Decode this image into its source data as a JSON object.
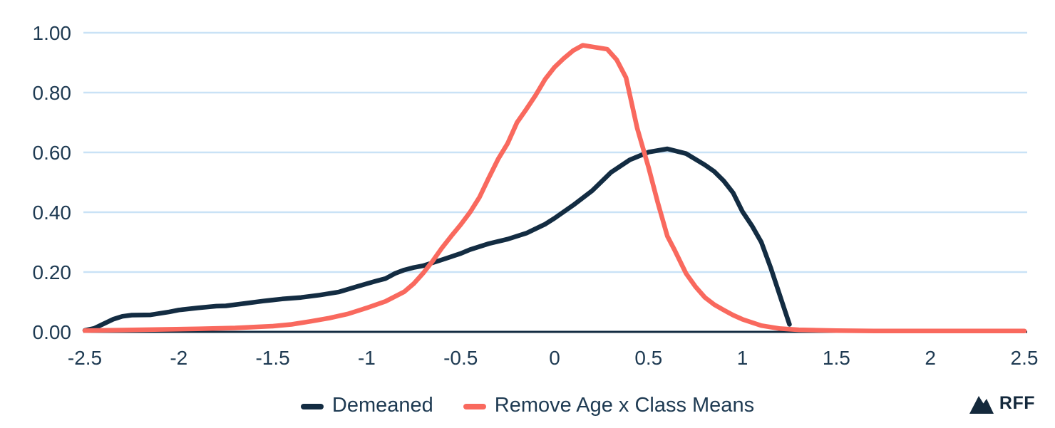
{
  "chart_data": {
    "type": "line",
    "title": "",
    "xlabel": "",
    "ylabel": "",
    "xlim": [
      -2.5,
      2.5
    ],
    "ylim": [
      0,
      1.0
    ],
    "grid": "horizontal",
    "legend_position": "bottom-center",
    "x_ticks": {
      "values": [
        -2.5,
        -2,
        -1.5,
        -1,
        -0.5,
        0,
        0.5,
        1,
        1.5,
        2,
        2.5
      ],
      "labels": [
        "-2.5",
        "-2",
        "-1.5",
        "-1",
        "-0.5",
        "0",
        "0.5",
        "1",
        "1.5",
        "2",
        "2.5"
      ]
    },
    "y_ticks": {
      "values": [
        0,
        0.2,
        0.4,
        0.6,
        0.8,
        1.0
      ],
      "labels": [
        "0.00",
        "0.20",
        "0.40",
        "0.60",
        "0.80",
        "1.00"
      ]
    },
    "colors": {
      "grid": "#c9e2f6",
      "axis": "#132c42",
      "tick_text": "#1e3a52"
    },
    "series": [
      {
        "name": "Demeaned",
        "color": "#132c42",
        "points": [
          [
            -2.5,
            0.005
          ],
          [
            -2.45,
            0.012
          ],
          [
            -2.4,
            0.027
          ],
          [
            -2.35,
            0.042
          ],
          [
            -2.3,
            0.052
          ],
          [
            -2.25,
            0.056
          ],
          [
            -2.15,
            0.057
          ],
          [
            -2.05,
            0.067
          ],
          [
            -2.0,
            0.073
          ],
          [
            -1.9,
            0.08
          ],
          [
            -1.8,
            0.086
          ],
          [
            -1.75,
            0.087
          ],
          [
            -1.65,
            0.095
          ],
          [
            -1.55,
            0.103
          ],
          [
            -1.45,
            0.11
          ],
          [
            -1.35,
            0.115
          ],
          [
            -1.25,
            0.123
          ],
          [
            -1.15,
            0.133
          ],
          [
            -1.05,
            0.152
          ],
          [
            -0.95,
            0.17
          ],
          [
            -0.9,
            0.178
          ],
          [
            -0.85,
            0.195
          ],
          [
            -0.8,
            0.207
          ],
          [
            -0.75,
            0.215
          ],
          [
            -0.7,
            0.221
          ],
          [
            -0.6,
            0.241
          ],
          [
            -0.5,
            0.262
          ],
          [
            -0.45,
            0.275
          ],
          [
            -0.35,
            0.295
          ],
          [
            -0.25,
            0.31
          ],
          [
            -0.15,
            0.33
          ],
          [
            -0.05,
            0.36
          ],
          [
            0.0,
            0.38
          ],
          [
            0.1,
            0.424
          ],
          [
            0.2,
            0.472
          ],
          [
            0.3,
            0.533
          ],
          [
            0.4,
            0.575
          ],
          [
            0.5,
            0.601
          ],
          [
            0.6,
            0.612
          ],
          [
            0.7,
            0.596
          ],
          [
            0.8,
            0.558
          ],
          [
            0.85,
            0.536
          ],
          [
            0.9,
            0.505
          ],
          [
            0.95,
            0.465
          ],
          [
            1.0,
            0.402
          ],
          [
            1.05,
            0.355
          ],
          [
            1.1,
            0.3
          ],
          [
            1.15,
            0.215
          ],
          [
            1.2,
            0.12
          ],
          [
            1.25,
            0.025
          ]
        ]
      },
      {
        "name": "Remove Age x Class Means",
        "color": "#f9695e",
        "points": [
          [
            -2.5,
            0.004
          ],
          [
            -2.3,
            0.006
          ],
          [
            -2.1,
            0.008
          ],
          [
            -1.9,
            0.01
          ],
          [
            -1.7,
            0.013
          ],
          [
            -1.5,
            0.019
          ],
          [
            -1.4,
            0.025
          ],
          [
            -1.3,
            0.035
          ],
          [
            -1.2,
            0.046
          ],
          [
            -1.1,
            0.06
          ],
          [
            -1.0,
            0.08
          ],
          [
            -0.9,
            0.102
          ],
          [
            -0.8,
            0.134
          ],
          [
            -0.75,
            0.161
          ],
          [
            -0.7,
            0.196
          ],
          [
            -0.65,
            0.236
          ],
          [
            -0.6,
            0.28
          ],
          [
            -0.55,
            0.32
          ],
          [
            -0.5,
            0.358
          ],
          [
            -0.45,
            0.4
          ],
          [
            -0.4,
            0.45
          ],
          [
            -0.35,
            0.515
          ],
          [
            -0.3,
            0.578
          ],
          [
            -0.25,
            0.63
          ],
          [
            -0.2,
            0.7
          ],
          [
            -0.15,
            0.745
          ],
          [
            -0.1,
            0.792
          ],
          [
            -0.05,
            0.845
          ],
          [
            0.0,
            0.885
          ],
          [
            0.05,
            0.915
          ],
          [
            0.1,
            0.941
          ],
          [
            0.15,
            0.958
          ],
          [
            0.2,
            0.953
          ],
          [
            0.28,
            0.945
          ],
          [
            0.33,
            0.91
          ],
          [
            0.38,
            0.85
          ],
          [
            0.44,
            0.68
          ],
          [
            0.5,
            0.55
          ],
          [
            0.55,
            0.43
          ],
          [
            0.6,
            0.32
          ],
          [
            0.64,
            0.272
          ],
          [
            0.7,
            0.195
          ],
          [
            0.75,
            0.151
          ],
          [
            0.8,
            0.115
          ],
          [
            0.85,
            0.091
          ],
          [
            0.9,
            0.073
          ],
          [
            0.95,
            0.056
          ],
          [
            1.0,
            0.042
          ],
          [
            1.1,
            0.021
          ],
          [
            1.2,
            0.011
          ],
          [
            1.3,
            0.007
          ],
          [
            1.5,
            0.004
          ],
          [
            1.7,
            0.003
          ],
          [
            2.0,
            0.003
          ],
          [
            2.2,
            0.003
          ],
          [
            2.5,
            0.003
          ]
        ]
      }
    ]
  },
  "legend": {
    "items": [
      {
        "label": "Demeaned"
      },
      {
        "label": "Remove Age x Class Means"
      }
    ]
  },
  "branding": {
    "logo_text": "RFF",
    "logo_icon": "mountain-icon"
  }
}
